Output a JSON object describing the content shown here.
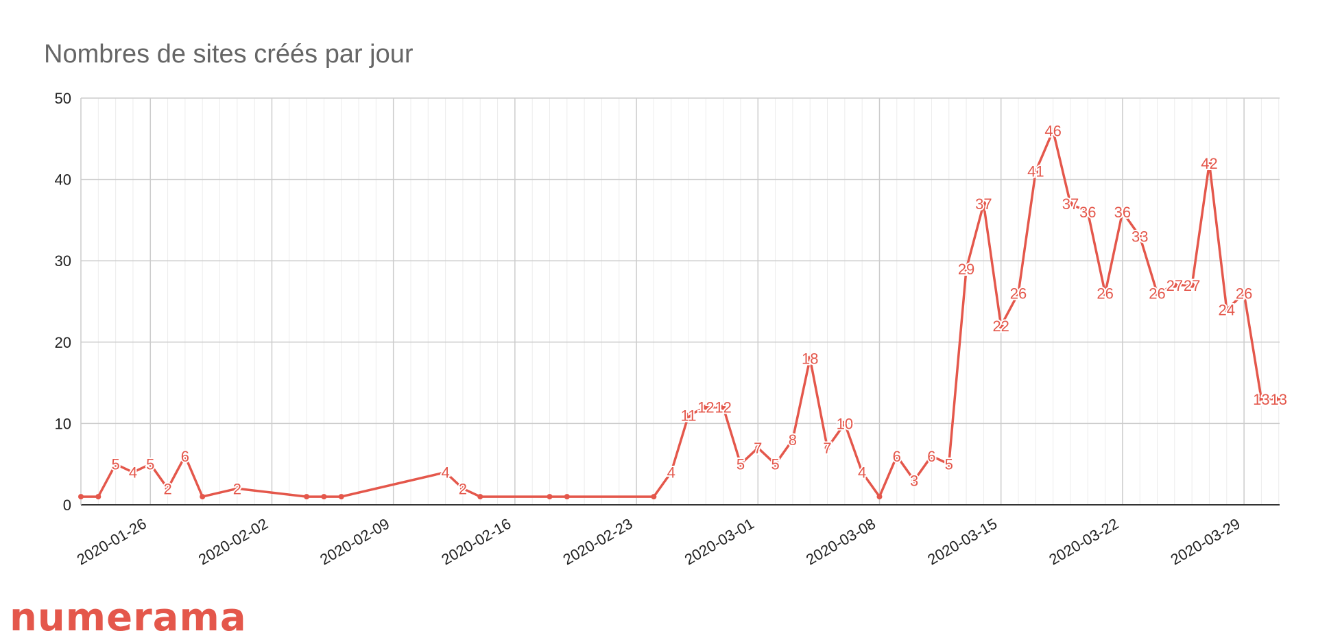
{
  "brand": {
    "logo_text": "numerama",
    "color": "#e4574b"
  },
  "chart_data": {
    "type": "line",
    "title": "Nombres de sites créés par jour",
    "xlabel": "",
    "ylabel": "",
    "ylim": [
      0,
      50
    ],
    "y_ticks": [
      0,
      10,
      20,
      30,
      40,
      50
    ],
    "x_range": [
      "2020-01-22",
      "2020-03-30"
    ],
    "x_tick_labels": [
      "2020-01-26",
      "2020-02-02",
      "2020-02-09",
      "2020-02-16",
      "2020-02-23",
      "2020-03-01",
      "2020-03-08",
      "2020-03-15",
      "2020-03-22",
      "2020-03-29"
    ],
    "grid": true,
    "legend": "none",
    "line_color": "#e4574b",
    "series": [
      {
        "points": [
          {
            "x": "2020-01-22",
            "y": 1,
            "label": ""
          },
          {
            "x": "2020-01-23",
            "y": 1,
            "label": ""
          },
          {
            "x": "2020-01-24",
            "y": 5,
            "label": "5"
          },
          {
            "x": "2020-01-25",
            "y": 4,
            "label": "4"
          },
          {
            "x": "2020-01-26",
            "y": 5,
            "label": "5"
          },
          {
            "x": "2020-01-27",
            "y": 2,
            "label": "2"
          },
          {
            "x": "2020-01-28",
            "y": 6,
            "label": "6"
          },
          {
            "x": "2020-01-29",
            "y": 1,
            "label": ""
          },
          {
            "x": "2020-01-31",
            "y": 2,
            "label": "2"
          },
          {
            "x": "2020-02-04",
            "y": 1,
            "label": ""
          },
          {
            "x": "2020-02-05",
            "y": 1,
            "label": ""
          },
          {
            "x": "2020-02-06",
            "y": 1,
            "label": ""
          },
          {
            "x": "2020-02-12",
            "y": 4,
            "label": "4"
          },
          {
            "x": "2020-02-13",
            "y": 2,
            "label": "2"
          },
          {
            "x": "2020-02-14",
            "y": 1,
            "label": ""
          },
          {
            "x": "2020-02-18",
            "y": 1,
            "label": ""
          },
          {
            "x": "2020-02-19",
            "y": 1,
            "label": ""
          },
          {
            "x": "2020-02-24",
            "y": 1,
            "label": ""
          },
          {
            "x": "2020-02-25",
            "y": 4,
            "label": "4"
          },
          {
            "x": "2020-02-26",
            "y": 11,
            "label": "11"
          },
          {
            "x": "2020-02-27",
            "y": 12,
            "label": "12"
          },
          {
            "x": "2020-02-28",
            "y": 12,
            "label": "12"
          },
          {
            "x": "2020-02-29",
            "y": 5,
            "label": "5"
          },
          {
            "x": "2020-03-01",
            "y": 7,
            "label": "7"
          },
          {
            "x": "2020-03-02",
            "y": 5,
            "label": "5"
          },
          {
            "x": "2020-03-03",
            "y": 8,
            "label": "8"
          },
          {
            "x": "2020-03-04",
            "y": 18,
            "label": "18"
          },
          {
            "x": "2020-03-05",
            "y": 7,
            "label": "7"
          },
          {
            "x": "2020-03-06",
            "y": 10,
            "label": "10"
          },
          {
            "x": "2020-03-07",
            "y": 4,
            "label": "4"
          },
          {
            "x": "2020-03-08",
            "y": 1,
            "label": ""
          },
          {
            "x": "2020-03-09",
            "y": 6,
            "label": "6"
          },
          {
            "x": "2020-03-10",
            "y": 3,
            "label": "3"
          },
          {
            "x": "2020-03-11",
            "y": 6,
            "label": "6"
          },
          {
            "x": "2020-03-12",
            "y": 5,
            "label": "5"
          },
          {
            "x": "2020-03-13",
            "y": 29,
            "label": "29"
          },
          {
            "x": "2020-03-14",
            "y": 37,
            "label": "37"
          },
          {
            "x": "2020-03-15",
            "y": 22,
            "label": "22"
          },
          {
            "x": "2020-03-16",
            "y": 26,
            "label": "26"
          },
          {
            "x": "2020-03-17",
            "y": 41,
            "label": "41"
          },
          {
            "x": "2020-03-18",
            "y": 46,
            "label": "46"
          },
          {
            "x": "2020-03-19",
            "y": 37,
            "label": "37"
          },
          {
            "x": "2020-03-20",
            "y": 36,
            "label": "36"
          },
          {
            "x": "2020-03-21",
            "y": 26,
            "label": "26"
          },
          {
            "x": "2020-03-22",
            "y": 36,
            "label": "36"
          },
          {
            "x": "2020-03-23",
            "y": 33,
            "label": "33"
          },
          {
            "x": "2020-03-24",
            "y": 26,
            "label": "26"
          },
          {
            "x": "2020-03-25",
            "y": 27,
            "label": "27"
          },
          {
            "x": "2020-03-26",
            "y": 27,
            "label": "27"
          },
          {
            "x": "2020-03-27",
            "y": 42,
            "label": "42"
          },
          {
            "x": "2020-03-28",
            "y": 24,
            "label": "24"
          },
          {
            "x": "2020-03-29",
            "y": 26,
            "label": "26"
          },
          {
            "x": "2020-03-30",
            "y": 13,
            "label": "13"
          },
          {
            "x": "2020-03-31",
            "y": 13,
            "label": "13"
          }
        ]
      }
    ]
  }
}
